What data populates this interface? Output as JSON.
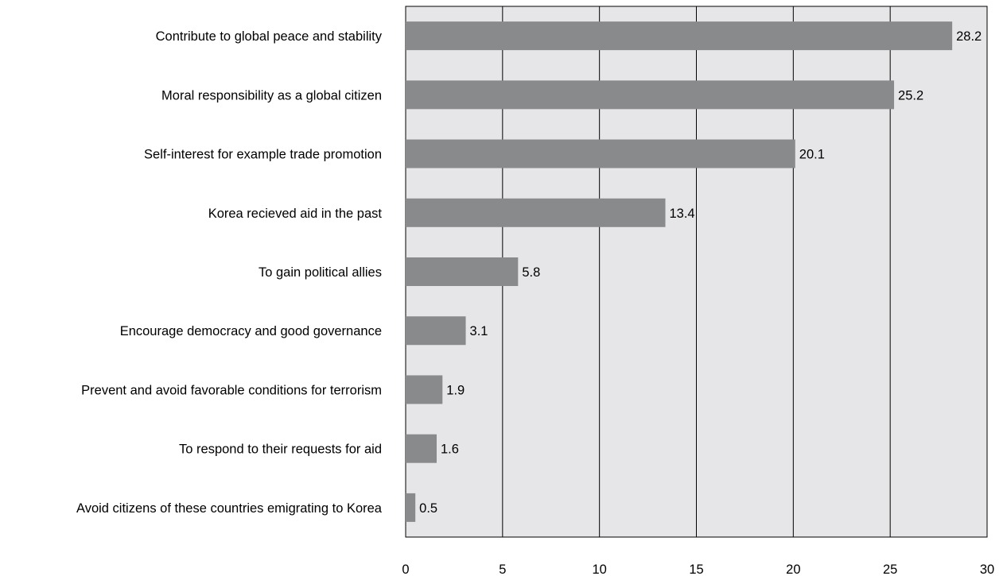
{
  "chart_data": {
    "type": "bar",
    "orientation": "horizontal",
    "categories": [
      "Contribute to global peace and stability",
      "Moral responsibility as a global citizen",
      "Self-interest for example trade promotion",
      "Korea recieved aid in the past",
      "To gain political allies",
      "Encourage democracy and good governance",
      "Prevent and avoid favorable conditions for terrorism",
      "To respond to their requests for aid",
      "Avoid citizens of these countries emigrating to Korea"
    ],
    "values": [
      28.2,
      25.2,
      20.1,
      13.4,
      5.8,
      3.1,
      1.9,
      1.6,
      0.5
    ],
    "value_labels": [
      "28.2",
      "25.2",
      "20.1",
      "13.4",
      "5.8",
      "3.1",
      "1.9",
      "1.6",
      "0.5"
    ],
    "x_ticks": [
      "0",
      "5",
      "10",
      "15",
      "20",
      "25",
      "30"
    ],
    "xlim": [
      0,
      30
    ],
    "grid": true,
    "colors": {
      "bar": "#898a8c",
      "plot_background": "#e6e6e8",
      "gridline": "#000000"
    }
  }
}
